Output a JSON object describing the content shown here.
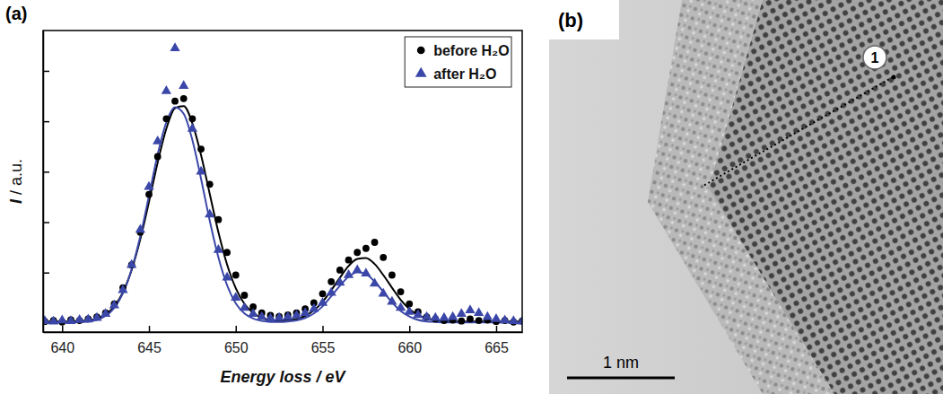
{
  "chart_data": {
    "type": "scatter",
    "panel_label": "(a)",
    "x_label": "Energy loss / eV",
    "y_label": "I / a.u.",
    "x": [
      639,
      639.5,
      640,
      640.5,
      641,
      641.5,
      642,
      642.5,
      643,
      643.5,
      644,
      644.5,
      645,
      645.5,
      646,
      646.5,
      647,
      647.5,
      648,
      648.5,
      649,
      649.5,
      650,
      650.5,
      651,
      651.5,
      652,
      652.5,
      653,
      653.5,
      654,
      654.5,
      655,
      655.5,
      656,
      656.5,
      657,
      657.5,
      658,
      658.5,
      659,
      659.5,
      660,
      660.5,
      661,
      661.5,
      662,
      662.5,
      663,
      663.5,
      664,
      664.5,
      665,
      665.5,
      666,
      666.5
    ],
    "series": [
      {
        "name": "before H₂O",
        "color": "#000000",
        "marker": "circle",
        "values": [
          0.03,
          0.05,
          0.02,
          0.06,
          0.05,
          0.08,
          0.12,
          0.2,
          0.38,
          0.7,
          1.15,
          1.8,
          2.55,
          3.3,
          4.05,
          4.4,
          4.45,
          4.05,
          3.45,
          2.75,
          2.05,
          1.4,
          0.95,
          0.55,
          0.32,
          0.2,
          0.15,
          0.13,
          0.16,
          0.2,
          0.28,
          0.4,
          0.58,
          0.82,
          1.05,
          1.25,
          1.4,
          1.48,
          1.6,
          1.3,
          0.95,
          0.62,
          0.38,
          0.22,
          0.12,
          0.08,
          0.05,
          0.06,
          0.04,
          0.08,
          0.05,
          0.06,
          0.03,
          0.05,
          0.02,
          0.04
        ],
        "fit": [
          0.03,
          0.03,
          0.03,
          0.03,
          0.04,
          0.05,
          0.09,
          0.17,
          0.33,
          0.61,
          1.05,
          1.66,
          2.4,
          3.18,
          3.85,
          4.26,
          4.3,
          3.96,
          3.33,
          2.56,
          1.8,
          1.16,
          0.69,
          0.38,
          0.2,
          0.1,
          0.06,
          0.05,
          0.06,
          0.08,
          0.14,
          0.25,
          0.42,
          0.65,
          0.9,
          1.13,
          1.27,
          1.29,
          1.17,
          0.95,
          0.7,
          0.46,
          0.28,
          0.16,
          0.09,
          0.06,
          0.04,
          0.03,
          0.03,
          0.03,
          0.03,
          0.03,
          0.03,
          0.03,
          0.03,
          0.03
        ]
      },
      {
        "name": "after H₂O",
        "color": "#3b47a8",
        "marker": "triangle",
        "values": [
          0.04,
          0.03,
          0.05,
          0.04,
          0.06,
          0.07,
          0.1,
          0.18,
          0.35,
          0.65,
          1.15,
          1.85,
          2.7,
          3.6,
          4.6,
          5.45,
          4.7,
          3.85,
          3.0,
          2.15,
          1.45,
          0.9,
          0.5,
          0.3,
          0.18,
          0.12,
          0.09,
          0.1,
          0.12,
          0.15,
          0.2,
          0.28,
          0.4,
          0.6,
          0.8,
          0.95,
          1.05,
          0.98,
          0.78,
          0.58,
          0.42,
          0.3,
          0.22,
          0.16,
          0.12,
          0.1,
          0.1,
          0.12,
          0.18,
          0.25,
          0.2,
          0.12,
          0.08,
          0.05,
          0.04,
          0.03
        ],
        "fit": [
          0.01,
          0.01,
          0.01,
          0.01,
          0.02,
          0.03,
          0.06,
          0.14,
          0.3,
          0.59,
          1.06,
          1.72,
          2.52,
          3.34,
          3.98,
          4.28,
          4.15,
          3.63,
          2.86,
          2.03,
          1.3,
          0.75,
          0.39,
          0.19,
          0.09,
          0.04,
          0.02,
          0.02,
          0.03,
          0.05,
          0.1,
          0.19,
          0.33,
          0.53,
          0.74,
          0.92,
          1.01,
          0.97,
          0.82,
          0.62,
          0.41,
          0.24,
          0.13,
          0.06,
          0.03,
          0.02,
          0.01,
          0.01,
          0.01,
          0.01,
          0.01,
          0.01,
          0.01,
          0.01,
          0.01,
          0.01
        ]
      }
    ],
    "xlim": [
      638.9,
      666.5
    ],
    "ylim": [
      -0.18,
      5.8
    ],
    "xticks": [
      640,
      645,
      650,
      655,
      660,
      665
    ],
    "yticks": [
      1,
      2,
      3,
      4,
      5
    ],
    "tick_labels": "x",
    "legend": "upper right"
  },
  "image_panel": {
    "panel_label": "(b)",
    "marker_label": "1",
    "scale_bar": "1 nm"
  }
}
